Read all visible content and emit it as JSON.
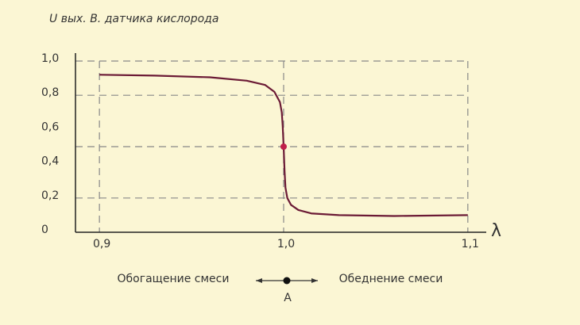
{
  "chart_data": {
    "type": "line",
    "title": "U вых. В. датчика кислорода",
    "x_label": "λ",
    "series": [
      {
        "color": "#6b1a35",
        "x": [
          0.9,
          0.93,
          0.96,
          0.98,
          0.99,
          0.995,
          0.998,
          0.999,
          0.9995,
          1.0,
          1.0005,
          1.001,
          1.002,
          1.004,
          1.008,
          1.015,
          1.03,
          1.06,
          1.1
        ],
        "values": [
          0.92,
          0.915,
          0.905,
          0.885,
          0.86,
          0.82,
          0.76,
          0.7,
          0.62,
          0.5,
          0.36,
          0.26,
          0.2,
          0.16,
          0.13,
          0.11,
          0.1,
          0.095,
          0.1
        ]
      }
    ],
    "marker": {
      "x": 1.0,
      "y": 0.5,
      "color": "#c0204a"
    },
    "xlim": [
      0.887,
      1.11
    ],
    "ylim": [
      0,
      1.0
    ],
    "xticks": [
      {
        "value": 0.9,
        "label": "0,9"
      },
      {
        "value": 1.0,
        "label": "1,0"
      },
      {
        "value": 1.1,
        "label": "1,1"
      }
    ],
    "yticks": [
      0,
      {
        "value": 0.2,
        "label": "0,2"
      },
      {
        "value": 0.4,
        "label": "0,4"
      },
      {
        "value": 0.6,
        "label": "0,6"
      },
      {
        "value": 0.8,
        "label": "0,8"
      },
      {
        "value": 1.0,
        "label": "1,0"
      }
    ],
    "hgrid": [
      0.2,
      0.5,
      0.8,
      1.0
    ],
    "grid": true,
    "annotations": {
      "left": "Обогащение смеси",
      "right": "Обеднение смеси",
      "point": "A"
    }
  }
}
